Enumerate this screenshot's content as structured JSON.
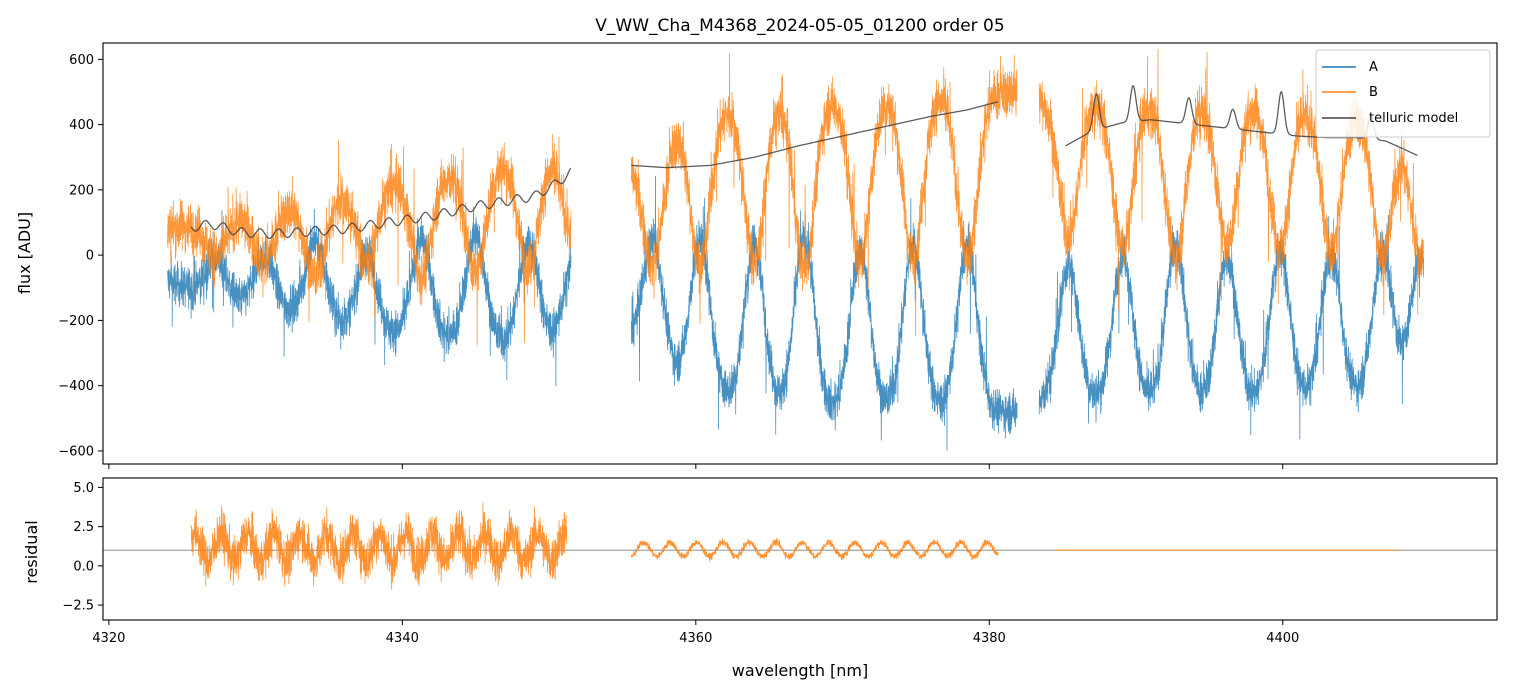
{
  "chart_data": [
    {
      "panel": "top",
      "type": "line",
      "title": "V_WW_Cha_M4368_2024-05-05_01200  order 05",
      "xlabel": "",
      "ylabel": "flux [ADU]",
      "xlim": [
        4319.6,
        4414.6
      ],
      "ylim": [
        -640,
        650
      ],
      "yticks": [
        600,
        400,
        200,
        0,
        -200,
        -400,
        -600
      ],
      "ytick_labels": [
        "600",
        "400",
        "200",
        "0",
        "−200",
        "−400",
        "−600"
      ],
      "xticks": [
        4320,
        4340,
        4360,
        4380,
        4400
      ],
      "show_xtick_labels": false,
      "segments": [
        [
          4324.0,
          4351.5
        ],
        [
          4355.6,
          4381.9
        ],
        [
          4383.4,
          4409.6
        ]
      ],
      "series": [
        {
          "name": "A",
          "color": "#1f77b4",
          "kind": "noisy",
          "center_points": [
            [
              4324.0,
              -80
            ],
            [
              4328.0,
              -140
            ],
            [
              4333.0,
              -180
            ],
            [
              4338.0,
              -240
            ],
            [
              4343.0,
              -260
            ],
            [
              4348.0,
              -280
            ],
            [
              4351.5,
              -260
            ],
            [
              4355.6,
              -260
            ],
            [
              4360.0,
              -420
            ],
            [
              4365.0,
              -460
            ],
            [
              4370.0,
              -470
            ],
            [
              4375.0,
              -470
            ],
            [
              4381.9,
              -480
            ],
            [
              4383.4,
              -440
            ],
            [
              4390.0,
              -450
            ],
            [
              4395.0,
              -450
            ],
            [
              4400.0,
              -440
            ],
            [
              4405.0,
              -430
            ],
            [
              4409.6,
              -380
            ]
          ],
          "line_centers": [
            4327.3,
            4330.6,
            4334.1,
            4337.6,
            4341.3,
            4345.0,
            4348.6,
            4351.7,
            4357.1,
            4360.3,
            4364.0,
            4367.4,
            4371.2,
            4374.8,
            4378.5,
            4385.4,
            4389.1,
            4392.7,
            4396.2,
            4399.8,
            4403.3,
            4406.8,
            4409.4
          ],
          "line_heights": [
            120,
            160,
            240,
            240,
            300,
            330,
            320,
            240,
            360,
            470,
            480,
            520,
            480,
            500,
            500,
            410,
            450,
            480,
            440,
            450,
            430,
            420,
            380
          ],
          "noise": 45
        },
        {
          "name": "B",
          "color": "#ff7f0e",
          "kind": "noisy",
          "center_points": [
            [
              4324.0,
              80
            ],
            [
              4328.0,
              110
            ],
            [
              4333.0,
              150
            ],
            [
              4338.0,
              210
            ],
            [
              4343.0,
              250
            ],
            [
              4348.0,
              290
            ],
            [
              4351.5,
              300
            ],
            [
              4355.6,
              280
            ],
            [
              4360.0,
              440
            ],
            [
              4365.0,
              470
            ],
            [
              4370.0,
              480
            ],
            [
              4375.0,
              490
            ],
            [
              4381.9,
              500
            ],
            [
              4383.4,
              480
            ],
            [
              4390.0,
              470
            ],
            [
              4395.0,
              470
            ],
            [
              4400.0,
              460
            ],
            [
              4405.0,
              440
            ],
            [
              4409.6,
              380
            ]
          ],
          "line_centers": [
            4327.3,
            4330.6,
            4334.1,
            4337.6,
            4341.3,
            4345.0,
            4348.6,
            4351.7,
            4357.1,
            4360.3,
            4364.0,
            4367.4,
            4371.2,
            4374.8,
            4378.5,
            4385.4,
            4389.1,
            4392.7,
            4396.2,
            4399.8,
            4403.3,
            4406.8,
            4409.4
          ],
          "line_heights": [
            110,
            150,
            230,
            230,
            300,
            320,
            330,
            260,
            360,
            470,
            490,
            520,
            500,
            500,
            510,
            420,
            450,
            480,
            440,
            440,
            430,
            420,
            390
          ],
          "noise": 55
        },
        {
          "name": "telluric model",
          "color": "#404040",
          "kind": "model",
          "segments": [
            [
              4325.6,
              4351.5
            ],
            [
              4355.6,
              4380.6
            ],
            [
              4385.2,
              4409.2
            ]
          ],
          "points": [
            [
              4325.6,
              85
            ],
            [
              4327.0,
              95
            ],
            [
              4329.0,
              70
            ],
            [
              4331.0,
              65
            ],
            [
              4333.0,
              70
            ],
            [
              4336.0,
              80
            ],
            [
              4339.0,
              100
            ],
            [
              4342.0,
              120
            ],
            [
              4345.0,
              150
            ],
            [
              4347.0,
              165
            ],
            [
              4349.0,
              180
            ],
            [
              4350.5,
              220
            ],
            [
              4351.5,
              255
            ],
            [
              4355.6,
              275
            ],
            [
              4358.0,
              268
            ],
            [
              4361.0,
              275
            ],
            [
              4364.0,
              300
            ],
            [
              4367.0,
              335
            ],
            [
              4370.0,
              365
            ],
            [
              4373.0,
              395
            ],
            [
              4376.0,
              425
            ],
            [
              4378.5,
              445
            ],
            [
              4380.6,
              470
            ],
            [
              4385.2,
              335
            ],
            [
              4387.0,
              380
            ],
            [
              4389.0,
              405
            ],
            [
              4391.0,
              415
            ],
            [
              4393.0,
              405
            ],
            [
              4395.0,
              395
            ],
            [
              4397.0,
              385
            ],
            [
              4399.0,
              375
            ],
            [
              4401.0,
              365
            ],
            [
              4403.0,
              360
            ],
            [
              4405.0,
              360
            ],
            [
              4407.0,
              350
            ],
            [
              4408.0,
              330
            ],
            [
              4409.2,
              305
            ]
          ],
          "ripple_segment1": {
            "amplitude": 14,
            "period": 1.25
          },
          "peaks": [
            [
              4387.3,
              110
            ],
            [
              4389.8,
              110
            ],
            [
              4393.6,
              80
            ],
            [
              4396.6,
              60
            ],
            [
              4399.9,
              130
            ],
            [
              4406.0,
              70
            ]
          ]
        }
      ],
      "legend": {
        "position": "top-right",
        "entries": [
          {
            "label": "A",
            "color": "#1f77b4"
          },
          {
            "label": "B",
            "color": "#ff7f0e"
          },
          {
            "label": "telluric model",
            "color": "#404040"
          }
        ]
      }
    },
    {
      "panel": "bottom",
      "type": "line",
      "title": "",
      "xlabel": "wavelength [nm]",
      "ylabel": "residual",
      "xlim": [
        4319.6,
        4414.6
      ],
      "ylim": [
        -3.45,
        5.6
      ],
      "yticks": [
        5.0,
        2.5,
        0.0,
        -2.5
      ],
      "ytick_labels": [
        "5.0",
        "2.5",
        "0.0",
        "−2.5"
      ],
      "xticks": [
        4320,
        4340,
        4360,
        4380,
        4400
      ],
      "xtick_labels": [
        "4320",
        "4340",
        "4360",
        "4380",
        "4400"
      ],
      "reference_line": {
        "y": 1.0,
        "color": "#808080"
      },
      "series": [
        {
          "name": "B residual",
          "color": "#ff7f0e",
          "segments": [
            {
              "x_range": [
                4325.6,
                4351.2
              ],
              "center": 1.2,
              "noise": 1.9,
              "wave_amp": 0.9
            },
            {
              "x_range": [
                4355.6,
                4380.6
              ],
              "center": 1.05,
              "noise": 0.28,
              "wave_amp": 0.45
            },
            {
              "x_range": [
                4384.6,
                4408.0
              ],
              "center": 1.0,
              "noise": 0.0,
              "wave_amp": 0.0
            }
          ]
        }
      ]
    }
  ]
}
